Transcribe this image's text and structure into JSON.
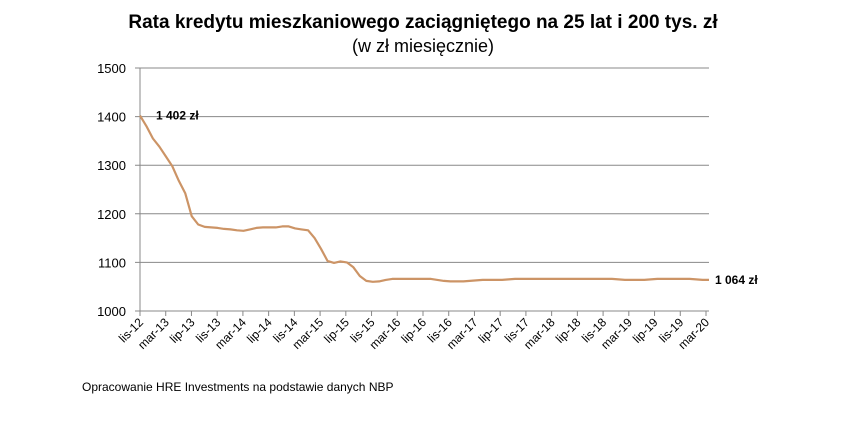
{
  "chart_data": {
    "type": "line",
    "title": "Rata kredytu mieszkaniowego zaciągniętego na 25 lat i 200 tys. zł",
    "subtitle": "(w zł miesięcznie)",
    "xlabel": "",
    "ylabel": "",
    "ylim": [
      1000,
      1500
    ],
    "yticks": [
      1000,
      1100,
      1200,
      1300,
      1400,
      1500
    ],
    "grid": true,
    "legend": null,
    "line_color": "#cc9466",
    "x_tick_labels": [
      "lis-12",
      "mar-13",
      "lip-13",
      "lis-13",
      "mar-14",
      "lip-14",
      "lis-14",
      "mar-15",
      "lip-15",
      "lis-15",
      "mar-16",
      "lip-16",
      "lis-16",
      "mar-17",
      "lip-17",
      "lis-17",
      "mar-18",
      "lip-18",
      "lis-18",
      "mar-19",
      "lip-19",
      "lis-19",
      "mar-20"
    ],
    "x_start": "2012-11",
    "x_end": "2020-03",
    "series": [
      {
        "name": "Rata kredytu",
        "values": [
          1402,
          1380,
          1355,
          1338,
          1318,
          1298,
          1268,
          1242,
          1195,
          1178,
          1173,
          1172,
          1171,
          1169,
          1168,
          1166,
          1165,
          1168,
          1171,
          1172,
          1172,
          1172,
          1174,
          1174,
          1170,
          1168,
          1166,
          1150,
          1128,
          1103,
          1099,
          1102,
          1100,
          1090,
          1072,
          1062,
          1060,
          1061,
          1064,
          1066,
          1066,
          1066,
          1066,
          1066,
          1066,
          1066,
          1064,
          1062,
          1061,
          1061,
          1061,
          1062,
          1063,
          1064,
          1064,
          1064,
          1064,
          1065,
          1066,
          1066,
          1066,
          1066,
          1066,
          1066,
          1066,
          1066,
          1066,
          1066,
          1066,
          1066,
          1066,
          1066,
          1066,
          1066,
          1065,
          1064,
          1064,
          1064,
          1064,
          1065,
          1066,
          1066,
          1066,
          1066,
          1066,
          1066,
          1065,
          1064,
          1064
        ]
      }
    ],
    "annotations": [
      {
        "text": "1 402 zł",
        "at_index": 0,
        "value": 1402
      },
      {
        "text": "1 064 zł",
        "at_index": 88,
        "value": 1064
      }
    ]
  },
  "source_note": "Opracowanie HRE Investments na podstawie danych NBP"
}
